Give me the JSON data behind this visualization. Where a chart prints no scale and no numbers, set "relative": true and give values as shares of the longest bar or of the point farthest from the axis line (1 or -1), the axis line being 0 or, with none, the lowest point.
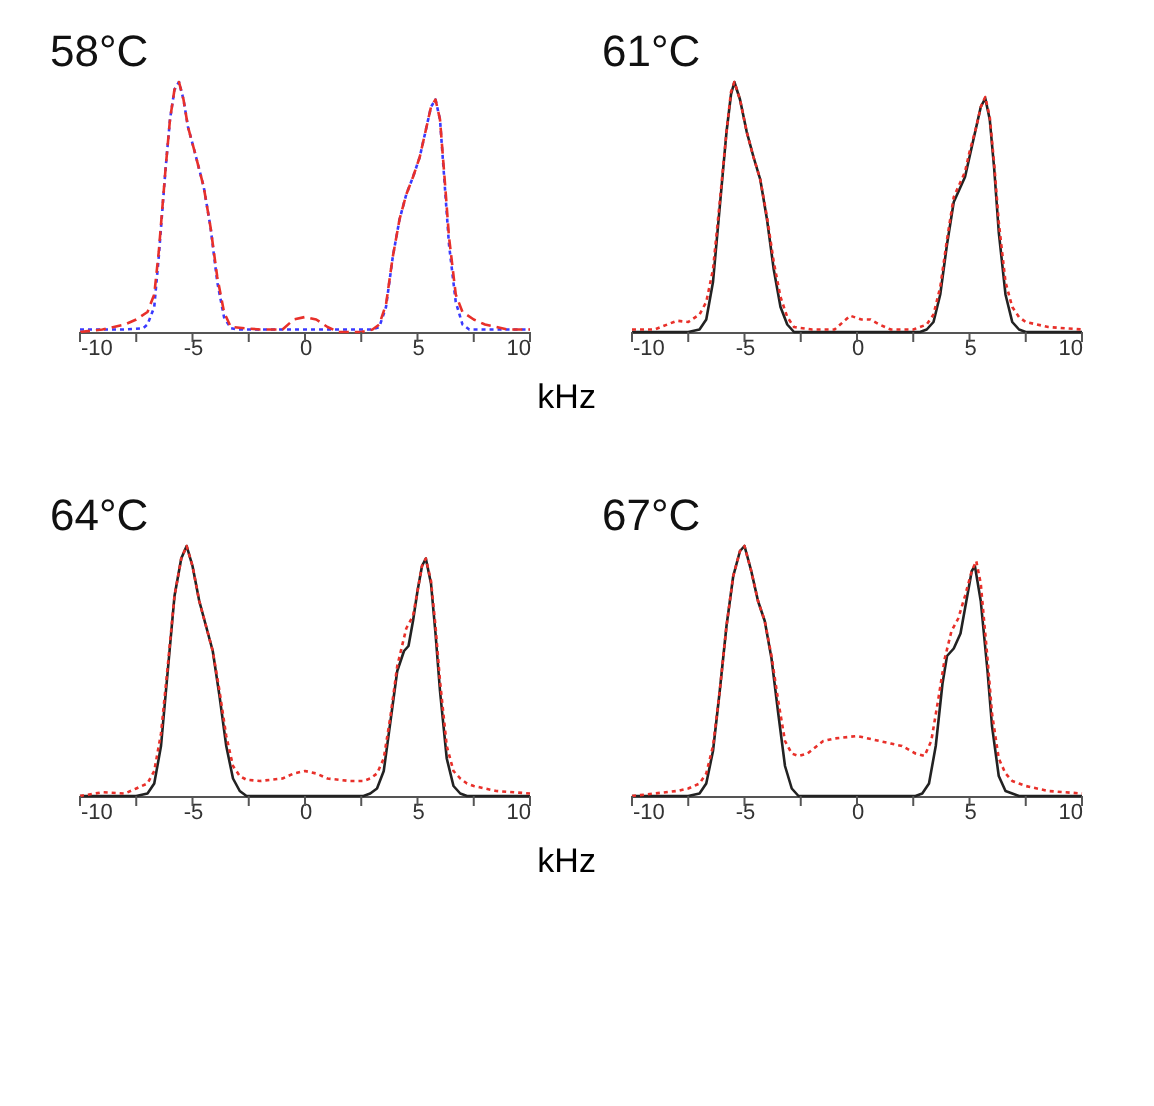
{
  "chart_data": [
    {
      "type": "line",
      "title": "58°C",
      "xlabel": "kHz",
      "relative": true,
      "xlim": [
        -10,
        10
      ],
      "xticks": [
        -10,
        {
          "value": -7.5,
          "label": null
        },
        -5,
        {
          "value": -2.5,
          "label": null
        },
        0,
        {
          "value": 2.5,
          "label": null
        },
        5,
        {
          "value": 7.5,
          "label": null
        },
        10
      ],
      "grid": false,
      "marker": "none",
      "x": [
        -10,
        -8,
        -7.2,
        -7,
        -6.7,
        -6.5,
        -6.2,
        -6.0,
        -5.8,
        -5.6,
        -5.4,
        -5.2,
        -4.9,
        -4.5,
        -4.2,
        -3.9,
        -3.6,
        -3.3,
        -3,
        0,
        3.0,
        3.3,
        3.6,
        3.9,
        4.2,
        4.5,
        4.8,
        5.1,
        5.4,
        5.6,
        5.8,
        6.0,
        6.2,
        6.4,
        6.7,
        7.0,
        7.3,
        10
      ],
      "series": [
        {
          "color": "#3a3aff",
          "line_style": "dotted",
          "values": [
            0.01,
            0.01,
            0.015,
            0.03,
            0.1,
            0.3,
            0.65,
            0.85,
            0.97,
            1.0,
            0.93,
            0.82,
            0.72,
            0.58,
            0.42,
            0.2,
            0.06,
            0.015,
            0.01,
            0.01,
            0.01,
            0.02,
            0.1,
            0.3,
            0.45,
            0.55,
            0.62,
            0.7,
            0.82,
            0.9,
            0.93,
            0.85,
            0.6,
            0.35,
            0.12,
            0.03,
            0.01,
            0.01
          ]
        },
        {
          "color": "#e8302a",
          "line_style": "dashed",
          "x": [
            -10,
            -9,
            -8,
            -7.5,
            -7,
            -6.7,
            -6.5,
            -6.2,
            -6.0,
            -5.8,
            -5.6,
            -5.4,
            -5.2,
            -4.9,
            -4.5,
            -4.2,
            -3.9,
            -3.6,
            -3.3,
            -2,
            -1,
            -0.5,
            0,
            0.5,
            1,
            1.5,
            2.5,
            3,
            3.3,
            3.6,
            3.9,
            4.2,
            4.5,
            4.8,
            5.1,
            5.4,
            5.6,
            5.8,
            6.0,
            6.2,
            6.4,
            6.7,
            7.0,
            7.5,
            8,
            9,
            10
          ],
          "values": [
            0.0,
            0.01,
            0.03,
            0.05,
            0.08,
            0.15,
            0.32,
            0.65,
            0.85,
            0.97,
            1.0,
            0.93,
            0.82,
            0.72,
            0.58,
            0.42,
            0.22,
            0.08,
            0.02,
            0.01,
            0.01,
            0.05,
            0.06,
            0.05,
            0.02,
            0.0,
            0.0,
            0.01,
            0.03,
            0.11,
            0.3,
            0.45,
            0.55,
            0.62,
            0.7,
            0.82,
            0.9,
            0.93,
            0.85,
            0.62,
            0.38,
            0.15,
            0.08,
            0.05,
            0.03,
            0.01,
            0.01
          ]
        }
      ]
    },
    {
      "type": "line",
      "title": "61°C",
      "relative": true,
      "xlim": [
        -10,
        10
      ],
      "xticks": [
        -10,
        {
          "value": -7.5,
          "label": null
        },
        -5,
        {
          "value": -2.5,
          "label": null
        },
        0,
        {
          "value": 2.5,
          "label": null
        },
        5,
        {
          "value": 7.5,
          "label": null
        },
        10
      ],
      "grid": false,
      "marker": "none",
      "x": [
        -10,
        -7.5,
        -7,
        -6.7,
        -6.4,
        -6.1,
        -5.8,
        -5.6,
        -5.45,
        -5.2,
        -4.9,
        -4.6,
        -4.3,
        -4.0,
        -3.7,
        -3.4,
        -3.1,
        -2.8,
        0,
        2.8,
        3.1,
        3.4,
        3.7,
        4.0,
        4.3,
        4.6,
        4.8,
        5.0,
        5.3,
        5.5,
        5.7,
        5.9,
        6.1,
        6.3,
        6.6,
        6.9,
        7.2,
        7.5,
        10
      ],
      "series": [
        {
          "color": "#222222",
          "line_style": "solid",
          "values": [
            0.0,
            0.0,
            0.01,
            0.05,
            0.2,
            0.5,
            0.8,
            0.95,
            1.0,
            0.93,
            0.8,
            0.7,
            0.61,
            0.45,
            0.25,
            0.1,
            0.03,
            0.0,
            0.0,
            0.0,
            0.01,
            0.04,
            0.15,
            0.35,
            0.52,
            0.58,
            0.62,
            0.7,
            0.82,
            0.9,
            0.935,
            0.85,
            0.65,
            0.4,
            0.15,
            0.04,
            0.01,
            0.0,
            0.0
          ]
        },
        {
          "color": "#e8302a",
          "line_style": "dotted",
          "x": [
            -10,
            -9,
            -8,
            -7.5,
            -7,
            -6.7,
            -6.4,
            -6.1,
            -5.8,
            -5.6,
            -5.45,
            -5.2,
            -4.9,
            -4.6,
            -4.3,
            -4.0,
            -3.7,
            -3.4,
            -3.1,
            -2.8,
            -2,
            -1,
            -0.3,
            0.2,
            0.6,
            1.0,
            1.5,
            2.5,
            3.1,
            3.4,
            3.7,
            4.0,
            4.3,
            4.6,
            4.8,
            5.0,
            5.3,
            5.5,
            5.7,
            5.9,
            6.1,
            6.3,
            6.6,
            6.9,
            7.2,
            7.5,
            8.5,
            10
          ],
          "values": [
            0.01,
            0.01,
            0.045,
            0.04,
            0.07,
            0.12,
            0.25,
            0.52,
            0.8,
            0.96,
            1.0,
            0.93,
            0.8,
            0.7,
            0.61,
            0.46,
            0.28,
            0.14,
            0.06,
            0.02,
            0.01,
            0.01,
            0.065,
            0.05,
            0.05,
            0.03,
            0.01,
            0.01,
            0.03,
            0.07,
            0.18,
            0.37,
            0.54,
            0.6,
            0.64,
            0.72,
            0.82,
            0.9,
            0.94,
            0.86,
            0.67,
            0.44,
            0.2,
            0.1,
            0.06,
            0.04,
            0.02,
            0.01
          ]
        }
      ]
    },
    {
      "type": "line",
      "title": "64°C",
      "xlabel": "kHz",
      "relative": true,
      "xlim": [
        -10,
        10
      ],
      "xticks": [
        -10,
        {
          "value": -7.5,
          "label": null
        },
        -5,
        {
          "value": -2.5,
          "label": null
        },
        0,
        {
          "value": 2.5,
          "label": null
        },
        5,
        {
          "value": 7.5,
          "label": null
        },
        10
      ],
      "grid": false,
      "marker": "none",
      "x": [
        -10,
        -7.5,
        -7,
        -6.7,
        -6.4,
        -6.1,
        -5.8,
        -5.5,
        -5.26,
        -5.0,
        -4.7,
        -4.4,
        -4.1,
        -3.8,
        -3.5,
        -3.2,
        -2.9,
        -2.6,
        0,
        2.6,
        2.9,
        3.2,
        3.5,
        3.8,
        4.1,
        4.4,
        4.6,
        4.8,
        5.0,
        5.2,
        5.37,
        5.6,
        5.8,
        6.0,
        6.3,
        6.6,
        6.9,
        7.2,
        10
      ],
      "series": [
        {
          "color": "#222222",
          "line_style": "solid",
          "values": [
            0.0,
            0.0,
            0.01,
            0.05,
            0.2,
            0.5,
            0.8,
            0.95,
            1.0,
            0.92,
            0.78,
            0.68,
            0.58,
            0.4,
            0.2,
            0.07,
            0.02,
            0.0,
            0.0,
            0.0,
            0.01,
            0.03,
            0.1,
            0.3,
            0.5,
            0.58,
            0.6,
            0.7,
            0.82,
            0.92,
            0.95,
            0.85,
            0.65,
            0.42,
            0.15,
            0.04,
            0.01,
            0.0,
            0.0
          ]
        },
        {
          "color": "#e8302a",
          "line_style": "dotted",
          "x": [
            -10,
            -9,
            -8,
            -7.5,
            -7,
            -6.7,
            -6.4,
            -6.1,
            -5.8,
            -5.5,
            -5.26,
            -5.0,
            -4.7,
            -4.4,
            -4.1,
            -3.8,
            -3.5,
            -3.2,
            -2.9,
            -2.6,
            -2,
            -1,
            -0.5,
            0,
            0.5,
            1,
            2,
            2.6,
            2.9,
            3.2,
            3.5,
            3.8,
            4.1,
            4.5,
            4.8,
            5.0,
            5.2,
            5.37,
            5.6,
            5.8,
            6.0,
            6.3,
            6.6,
            6.9,
            7.2,
            7.5,
            8.5,
            10
          ],
          "values": [
            0.0,
            0.015,
            0.01,
            0.03,
            0.05,
            0.1,
            0.25,
            0.52,
            0.8,
            0.95,
            1.0,
            0.92,
            0.78,
            0.68,
            0.58,
            0.42,
            0.24,
            0.12,
            0.08,
            0.065,
            0.06,
            0.07,
            0.09,
            0.1,
            0.09,
            0.07,
            0.06,
            0.06,
            0.07,
            0.09,
            0.15,
            0.32,
            0.52,
            0.67,
            0.72,
            0.82,
            0.92,
            0.95,
            0.86,
            0.68,
            0.46,
            0.2,
            0.1,
            0.07,
            0.05,
            0.04,
            0.02,
            0.01
          ]
        }
      ]
    },
    {
      "type": "line",
      "title": "67°C",
      "relative": true,
      "xlim": [
        -10,
        10
      ],
      "xticks": [
        -10,
        {
          "value": -7.5,
          "label": null
        },
        -5,
        {
          "value": -2.5,
          "label": null
        },
        0,
        {
          "value": 2.5,
          "label": null
        },
        5,
        {
          "value": 7.5,
          "label": null
        },
        10
      ],
      "grid": false,
      "marker": "none",
      "x": [
        -10,
        -7.5,
        -7,
        -6.7,
        -6.4,
        -6.1,
        -5.8,
        -5.5,
        -5.2,
        -5.0,
        -4.7,
        -4.4,
        -4.1,
        -3.8,
        -3.5,
        -3.2,
        -2.9,
        -2.6,
        0,
        2.6,
        2.9,
        3.2,
        3.5,
        3.8,
        4.0,
        4.3,
        4.6,
        4.9,
        5.1,
        5.24,
        5.5,
        5.8,
        6.0,
        6.3,
        6.6,
        6.9,
        7.2,
        10
      ],
      "series": [
        {
          "color": "#222222",
          "line_style": "solid",
          "values": [
            0.0,
            0.0,
            0.01,
            0.05,
            0.18,
            0.42,
            0.68,
            0.88,
            0.98,
            1.0,
            0.9,
            0.78,
            0.7,
            0.55,
            0.33,
            0.12,
            0.03,
            0.0,
            0.0,
            0.0,
            0.01,
            0.05,
            0.2,
            0.45,
            0.56,
            0.59,
            0.65,
            0.8,
            0.9,
            0.92,
            0.78,
            0.5,
            0.28,
            0.08,
            0.02,
            0.01,
            0.0,
            0.0
          ]
        },
        {
          "color": "#e8302a",
          "line_style": "dotted",
          "x": [
            -10,
            -9,
            -8,
            -7.5,
            -7,
            -6.7,
            -6.4,
            -6.1,
            -5.8,
            -5.5,
            -5.2,
            -5.0,
            -4.7,
            -4.4,
            -4.1,
            -3.8,
            -3.5,
            -3.2,
            -2.9,
            -2.6,
            -2.2,
            -1.5,
            -1,
            0,
            1,
            1.5,
            2,
            2.6,
            3.0,
            3.3,
            3.6,
            3.9,
            4.2,
            4.5,
            4.8,
            5.1,
            5.3,
            5.5,
            5.8,
            6.0,
            6.3,
            6.6,
            6.9,
            7.2,
            7.5,
            8.5,
            10
          ],
          "values": [
            0.0,
            0.01,
            0.02,
            0.03,
            0.05,
            0.09,
            0.2,
            0.42,
            0.68,
            0.88,
            0.98,
            1.0,
            0.9,
            0.78,
            0.7,
            0.56,
            0.38,
            0.22,
            0.17,
            0.16,
            0.17,
            0.22,
            0.23,
            0.24,
            0.22,
            0.21,
            0.2,
            0.17,
            0.16,
            0.22,
            0.38,
            0.55,
            0.66,
            0.71,
            0.8,
            0.9,
            0.94,
            0.85,
            0.55,
            0.33,
            0.15,
            0.09,
            0.06,
            0.05,
            0.04,
            0.02,
            0.01
          ]
        }
      ]
    }
  ]
}
